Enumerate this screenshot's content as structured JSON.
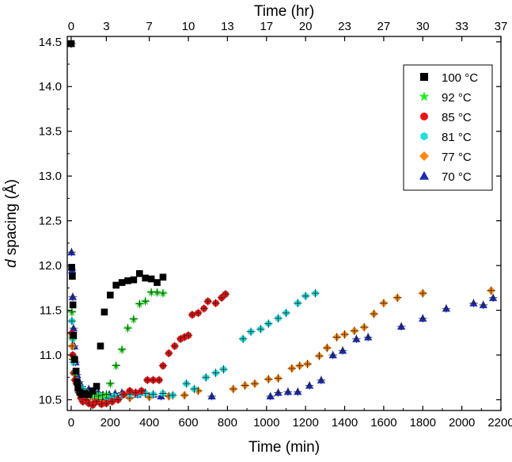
{
  "chart_data": {
    "type": "scatter",
    "title": "",
    "xlabel": "Time (min)",
    "ylabel_prefix": "d",
    "ylabel_rest": " spacing (Å)",
    "x2label": "Time (hr)",
    "xlim": [
      -20,
      2200
    ],
    "ylim": [
      10.38,
      14.56
    ],
    "x_ticks": [
      0,
      200,
      400,
      600,
      800,
      1000,
      1200,
      1400,
      1600,
      1800,
      2000,
      2200
    ],
    "y_ticks": [
      10.5,
      11.0,
      11.5,
      12.0,
      12.5,
      13.0,
      13.5,
      14.0,
      14.5
    ],
    "y_tick_labels": [
      "10.5",
      "11.0",
      "11.5",
      "12.0",
      "12.5",
      "13.0",
      "13.5",
      "14.0",
      "14.5"
    ],
    "x2_ticks": [
      {
        "label": "0",
        "x": 0
      },
      {
        "label": "3",
        "x": 180
      },
      {
        "label": "7",
        "x": 400
      },
      {
        "label": "10",
        "x": 600
      },
      {
        "label": "13",
        "x": 800
      },
      {
        "label": "17",
        "x": 1000
      },
      {
        "label": "20",
        "x": 1200
      },
      {
        "label": "23",
        "x": 1400
      },
      {
        "label": "27",
        "x": 1600
      },
      {
        "label": "30",
        "x": 1800
      },
      {
        "label": "33",
        "x": 2000
      },
      {
        "label": "37",
        "x": 2200
      }
    ],
    "grid": false,
    "legend_position": "top-right",
    "series": [
      {
        "name": "100 °C",
        "marker": "square",
        "color": "#000000",
        "points": [
          [
            0,
            14.48
          ],
          [
            3,
            11.98
          ],
          [
            6,
            11.88
          ],
          [
            9,
            11.56
          ],
          [
            12,
            11.22
          ],
          [
            18,
            10.95
          ],
          [
            25,
            10.82
          ],
          [
            30,
            10.7
          ],
          [
            35,
            10.63
          ],
          [
            45,
            10.58
          ],
          [
            55,
            10.56
          ],
          [
            70,
            10.57
          ],
          [
            90,
            10.56
          ],
          [
            110,
            10.6
          ],
          [
            130,
            10.65
          ],
          [
            150,
            11.1
          ],
          [
            170,
            11.48
          ],
          [
            200,
            11.67
          ],
          [
            230,
            11.78
          ],
          [
            260,
            11.81
          ],
          [
            290,
            11.83
          ],
          [
            320,
            11.84
          ],
          [
            350,
            11.91
          ],
          [
            380,
            11.86
          ],
          [
            410,
            11.85
          ],
          [
            440,
            11.81
          ],
          [
            470,
            11.87
          ]
        ]
      },
      {
        "name": "92 °C",
        "marker": "star",
        "color": "#22ee22",
        "points": [
          [
            0,
            14.48
          ],
          [
            4,
            11.48
          ],
          [
            8,
            11.2
          ],
          [
            12,
            10.95
          ],
          [
            20,
            10.8
          ],
          [
            30,
            10.68
          ],
          [
            45,
            10.6
          ],
          [
            60,
            10.58
          ],
          [
            80,
            10.56
          ],
          [
            100,
            10.55
          ],
          [
            120,
            10.56
          ],
          [
            140,
            10.54
          ],
          [
            160,
            10.55
          ],
          [
            180,
            10.56
          ],
          [
            200,
            10.68
          ],
          [
            230,
            10.88
          ],
          [
            260,
            11.06
          ],
          [
            290,
            11.3
          ],
          [
            320,
            11.4
          ],
          [
            350,
            11.57
          ],
          [
            380,
            11.6
          ],
          [
            410,
            11.7
          ],
          [
            440,
            11.7
          ],
          [
            470,
            11.69
          ]
        ]
      },
      {
        "name": "85 °C",
        "marker": "circle",
        "color": "#ee1111",
        "points": [
          [
            0,
            14.48
          ],
          [
            4,
            11.24
          ],
          [
            8,
            11.0
          ],
          [
            14,
            10.8
          ],
          [
            20,
            10.72
          ],
          [
            28,
            10.68
          ],
          [
            40,
            10.58
          ],
          [
            50,
            10.52
          ],
          [
            60,
            10.48
          ],
          [
            75,
            10.5
          ],
          [
            90,
            10.46
          ],
          [
            110,
            10.44
          ],
          [
            130,
            10.48
          ],
          [
            155,
            10.45
          ],
          [
            180,
            10.46
          ],
          [
            210,
            10.48
          ],
          [
            240,
            10.5
          ],
          [
            270,
            10.56
          ],
          [
            300,
            10.6
          ],
          [
            330,
            10.58
          ],
          [
            360,
            10.6
          ],
          [
            390,
            10.72
          ],
          [
            420,
            10.72
          ],
          [
            450,
            10.72
          ],
          [
            470,
            10.88
          ],
          [
            500,
            11.02
          ],
          [
            530,
            11.1
          ],
          [
            560,
            11.18
          ],
          [
            580,
            11.2
          ],
          [
            600,
            11.22
          ],
          [
            620,
            11.45
          ],
          [
            650,
            11.47
          ],
          [
            680,
            11.52
          ],
          [
            700,
            11.6
          ],
          [
            740,
            11.58
          ],
          [
            770,
            11.64
          ],
          [
            790,
            11.68
          ]
        ]
      },
      {
        "name": "81 °C",
        "marker": "hexagon",
        "color": "#22dddd",
        "points": [
          [
            0,
            14.48
          ],
          [
            4,
            11.38
          ],
          [
            8,
            11.18
          ],
          [
            12,
            10.92
          ],
          [
            18,
            10.8
          ],
          [
            26,
            10.72
          ],
          [
            36,
            10.66
          ],
          [
            48,
            10.64
          ],
          [
            60,
            10.62
          ],
          [
            80,
            10.58
          ],
          [
            100,
            10.55
          ],
          [
            120,
            10.55
          ],
          [
            140,
            10.55
          ],
          [
            165,
            10.54
          ],
          [
            190,
            10.52
          ],
          [
            220,
            10.54
          ],
          [
            260,
            10.55
          ],
          [
            300,
            10.56
          ],
          [
            340,
            10.56
          ],
          [
            380,
            10.57
          ],
          [
            420,
            10.56
          ],
          [
            470,
            10.57
          ],
          [
            520,
            10.55
          ],
          [
            590,
            10.68
          ],
          [
            630,
            10.62
          ],
          [
            690,
            10.75
          ],
          [
            740,
            10.8
          ],
          [
            780,
            10.84
          ],
          [
            880,
            11.18
          ],
          [
            920,
            11.26
          ],
          [
            970,
            11.29
          ],
          [
            1010,
            11.35
          ],
          [
            1060,
            11.41
          ],
          [
            1100,
            11.47
          ],
          [
            1160,
            11.58
          ],
          [
            1200,
            11.66
          ],
          [
            1250,
            11.69
          ]
        ]
      },
      {
        "name": "77 °C",
        "marker": "diamond",
        "color": "#ff8811",
        "points": [
          [
            0,
            14.48
          ],
          [
            5,
            11.1
          ],
          [
            10,
            10.95
          ],
          [
            20,
            10.72
          ],
          [
            40,
            10.6
          ],
          [
            70,
            10.55
          ],
          [
            110,
            10.52
          ],
          [
            160,
            10.5
          ],
          [
            220,
            10.52
          ],
          [
            300,
            10.52
          ],
          [
            400,
            10.53
          ],
          [
            500,
            10.54
          ],
          [
            580,
            10.55
          ],
          [
            650,
            10.6
          ],
          [
            830,
            10.62
          ],
          [
            890,
            10.66
          ],
          [
            940,
            10.68
          ],
          [
            1010,
            10.73
          ],
          [
            1060,
            10.74
          ],
          [
            1130,
            10.85
          ],
          [
            1170,
            10.88
          ],
          [
            1210,
            10.9
          ],
          [
            1270,
            10.99
          ],
          [
            1310,
            11.08
          ],
          [
            1360,
            11.2
          ],
          [
            1400,
            11.23
          ],
          [
            1450,
            11.27
          ],
          [
            1500,
            11.31
          ],
          [
            1550,
            11.46
          ],
          [
            1600,
            11.58
          ],
          [
            1670,
            11.64
          ],
          [
            1800,
            11.69
          ],
          [
            2150,
            11.72
          ]
        ]
      },
      {
        "name": "70 °C",
        "marker": "triangle",
        "color": "#1c2bb8",
        "points": [
          [
            0,
            14.48
          ],
          [
            2,
            12.15
          ],
          [
            5,
            11.95
          ],
          [
            8,
            11.65
          ],
          [
            12,
            11.3
          ],
          [
            16,
            11.1
          ],
          [
            22,
            10.92
          ],
          [
            30,
            10.78
          ],
          [
            42,
            10.7
          ],
          [
            55,
            10.65
          ],
          [
            70,
            10.6
          ],
          [
            90,
            10.62
          ],
          [
            115,
            10.6
          ],
          [
            140,
            10.58
          ],
          [
            165,
            10.55
          ],
          [
            195,
            10.56
          ],
          [
            225,
            10.57
          ],
          [
            260,
            10.58
          ],
          [
            300,
            10.58
          ],
          [
            340,
            10.56
          ],
          [
            380,
            10.58
          ],
          [
            420,
            10.56
          ],
          [
            460,
            10.54
          ],
          [
            720,
            10.54
          ],
          [
            1020,
            10.54
          ],
          [
            1060,
            10.58
          ],
          [
            1110,
            10.59
          ],
          [
            1160,
            10.59
          ],
          [
            1220,
            10.66
          ],
          [
            1280,
            10.72
          ],
          [
            1340,
            11.0
          ],
          [
            1390,
            11.05
          ],
          [
            1460,
            11.18
          ],
          [
            1520,
            11.2
          ],
          [
            1690,
            11.32
          ],
          [
            1800,
            11.41
          ],
          [
            1920,
            11.52
          ],
          [
            2060,
            11.58
          ],
          [
            2110,
            11.56
          ],
          [
            2160,
            11.64
          ]
        ]
      }
    ]
  }
}
